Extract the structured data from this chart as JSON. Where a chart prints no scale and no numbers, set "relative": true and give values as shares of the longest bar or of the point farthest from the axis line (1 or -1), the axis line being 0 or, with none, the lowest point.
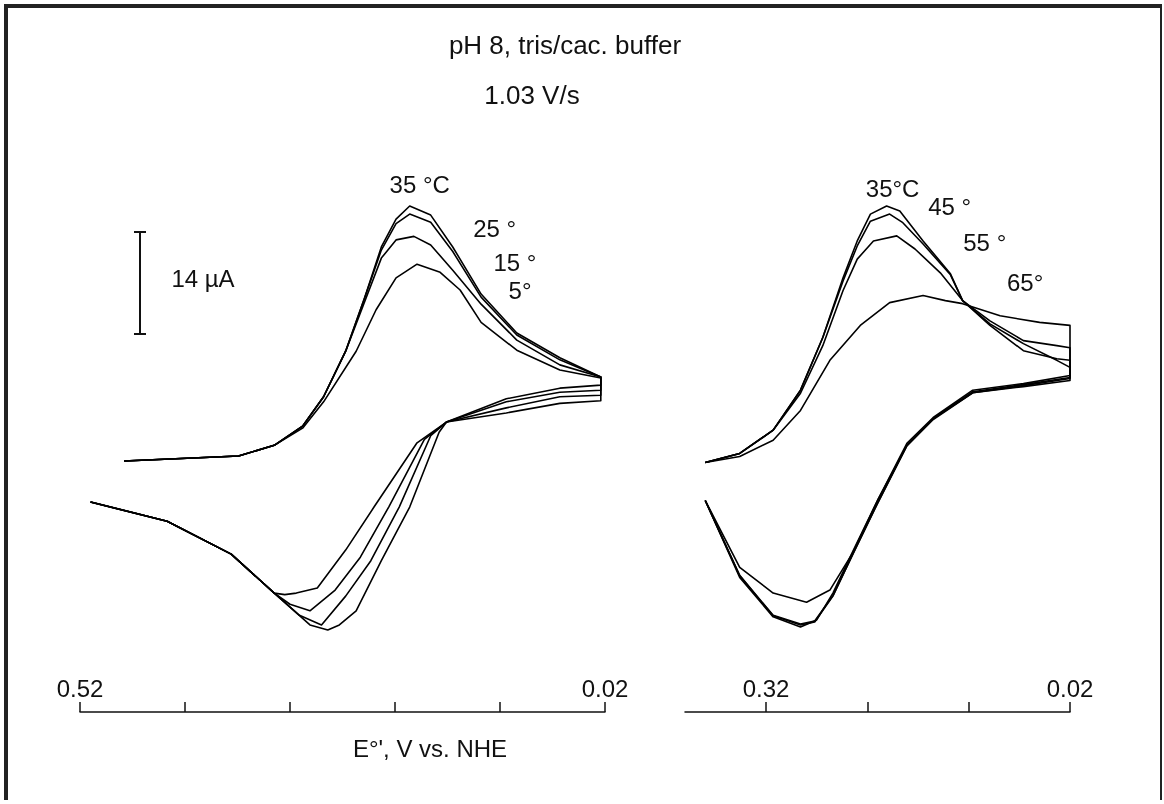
{
  "chart_data": [
    {
      "type": "line",
      "title": "pH 8, tris/cac. buffer",
      "subtitle": "1.03 V/s",
      "xlabel": "E°', V vs. NHE",
      "annotations": [
        "14 µA"
      ],
      "relative": true,
      "xlim": [
        0.52,
        0.02
      ],
      "xticks": [
        0.52,
        {
          "value": 0.42,
          "label": null
        },
        {
          "value": 0.32,
          "label": null
        },
        {
          "value": 0.22,
          "label": null
        },
        {
          "value": 0.12,
          "label": null
        },
        0.02
      ],
      "tick_labels": "x",
      "marker": "none",
      "legend": false,
      "grid": false,
      "series": [
        {
          "name": "35 °C",
          "color": "#000000",
          "x": [
            0.478,
            0.369,
            0.335,
            0.308,
            0.288,
            0.267,
            0.25,
            0.233,
            0.219,
            0.206,
            0.186,
            0.165,
            0.138,
            0.104,
            0.063,
            0.024,
            0.024,
            0.063,
            0.114,
            0.171,
            0.178,
            0.206,
            0.233,
            0.257,
            0.273,
            0.284,
            0.301,
            0.335,
            0.376,
            0.437,
            0.51
          ],
          "values": [
            0.496,
            0.506,
            0.527,
            0.565,
            0.623,
            0.713,
            0.812,
            0.919,
            0.974,
            1.0,
            0.982,
            0.919,
            0.826,
            0.749,
            0.7,
            0.662,
            0.646,
            0.64,
            0.619,
            0.573,
            0.553,
            0.405,
            0.299,
            0.2,
            0.172,
            0.162,
            0.172,
            0.235,
            0.312,
            0.377,
            0.415
          ]
        },
        {
          "name": "25 °",
          "color": "#000000",
          "x": [
            0.478,
            0.369,
            0.335,
            0.308,
            0.288,
            0.267,
            0.25,
            0.233,
            0.219,
            0.206,
            0.186,
            0.165,
            0.138,
            0.104,
            0.063,
            0.024,
            0.024,
            0.063,
            0.114,
            0.171,
            0.186,
            0.216,
            0.243,
            0.267,
            0.29,
            0.311,
            0.335,
            0.376,
            0.437,
            0.51
          ],
          "values": [
            0.496,
            0.506,
            0.527,
            0.565,
            0.623,
            0.713,
            0.812,
            0.913,
            0.965,
            0.984,
            0.968,
            0.91,
            0.82,
            0.745,
            0.696,
            0.662,
            0.636,
            0.632,
            0.613,
            0.573,
            0.546,
            0.405,
            0.299,
            0.229,
            0.172,
            0.191,
            0.235,
            0.312,
            0.377,
            0.415
          ]
        },
        {
          "name": "15 °",
          "color": "#000000",
          "x": [
            0.478,
            0.369,
            0.335,
            0.308,
            0.288,
            0.267,
            0.25,
            0.233,
            0.219,
            0.202,
            0.186,
            0.165,
            0.138,
            0.104,
            0.063,
            0.024,
            0.024,
            0.063,
            0.114,
            0.171,
            0.192,
            0.226,
            0.253,
            0.277,
            0.301,
            0.32,
            0.335,
            0.376,
            0.437,
            0.51
          ],
          "values": [
            0.496,
            0.506,
            0.527,
            0.565,
            0.623,
            0.713,
            0.805,
            0.897,
            0.933,
            0.94,
            0.923,
            0.873,
            0.806,
            0.735,
            0.686,
            0.662,
            0.626,
            0.623,
            0.601,
            0.573,
            0.539,
            0.405,
            0.306,
            0.241,
            0.2,
            0.213,
            0.235,
            0.312,
            0.377,
            0.415
          ]
        },
        {
          "name": "5°",
          "color": "#000000",
          "x": [
            0.478,
            0.369,
            0.335,
            0.308,
            0.288,
            0.257,
            0.238,
            0.219,
            0.199,
            0.177,
            0.158,
            0.138,
            0.104,
            0.063,
            0.024,
            0.024,
            0.063,
            0.114,
            0.171,
            0.199,
            0.24,
            0.267,
            0.294,
            0.314,
            0.325,
            0.335,
            0.376,
            0.437,
            0.51
          ],
          "values": [
            0.496,
            0.506,
            0.527,
            0.561,
            0.613,
            0.713,
            0.795,
            0.858,
            0.885,
            0.869,
            0.834,
            0.77,
            0.715,
            0.676,
            0.66,
            0.615,
            0.61,
            0.591,
            0.573,
            0.532,
            0.405,
            0.32,
            0.245,
            0.235,
            0.232,
            0.235,
            0.312,
            0.377,
            0.415
          ]
        }
      ]
    },
    {
      "type": "line",
      "relative": true,
      "xlim": [
        0.4,
        0.02
      ],
      "xticks": [
        0.32,
        {
          "value": 0.22,
          "label": null
        },
        {
          "value": 0.12,
          "label": null
        },
        0.02
      ],
      "tick_labels": "x",
      "marker": "none",
      "legend": false,
      "grid": false,
      "series": [
        {
          "name": "35°C",
          "color": "#000000",
          "x": [
            0.38,
            0.346,
            0.313,
            0.286,
            0.264,
            0.244,
            0.23,
            0.217,
            0.201,
            0.188,
            0.165,
            0.138,
            0.126,
            0.099,
            0.066,
            0.033,
            0.02,
            0.02,
            0.066,
            0.116,
            0.155,
            0.181,
            0.21,
            0.234,
            0.254,
            0.27,
            0.286,
            0.313,
            0.346,
            0.38
          ],
          "values": [
            0.493,
            0.511,
            0.557,
            0.636,
            0.74,
            0.858,
            0.931,
            0.984,
            1.0,
            0.99,
            0.931,
            0.866,
            0.813,
            0.767,
            0.728,
            0.695,
            0.681,
            0.665,
            0.649,
            0.636,
            0.582,
            0.531,
            0.418,
            0.319,
            0.235,
            0.182,
            0.168,
            0.188,
            0.266,
            0.418
          ]
        },
        {
          "name": "45 °",
          "color": "#000000",
          "x": [
            0.38,
            0.346,
            0.313,
            0.286,
            0.264,
            0.244,
            0.23,
            0.217,
            0.198,
            0.185,
            0.165,
            0.138,
            0.126,
            0.099,
            0.066,
            0.033,
            0.02,
            0.02,
            0.066,
            0.116,
            0.155,
            0.181,
            0.21,
            0.234,
            0.254,
            0.272,
            0.286,
            0.313,
            0.346,
            0.38
          ],
          "values": [
            0.493,
            0.511,
            0.557,
            0.636,
            0.74,
            0.852,
            0.921,
            0.97,
            0.984,
            0.967,
            0.925,
            0.864,
            0.813,
            0.764,
            0.714,
            0.698,
            0.695,
            0.661,
            0.647,
            0.633,
            0.58,
            0.527,
            0.413,
            0.314,
            0.229,
            0.178,
            0.172,
            0.19,
            0.269,
            0.418
          ]
        },
        {
          "name": "55 °",
          "color": "#000000",
          "x": [
            0.38,
            0.346,
            0.313,
            0.286,
            0.264,
            0.244,
            0.23,
            0.214,
            0.191,
            0.173,
            0.148,
            0.126,
            0.099,
            0.066,
            0.033,
            0.02,
            0.02,
            0.066,
            0.116,
            0.155,
            0.181,
            0.21,
            0.234,
            0.254,
            0.272,
            0.286,
            0.313,
            0.346,
            0.38
          ],
          "values": [
            0.493,
            0.511,
            0.557,
            0.63,
            0.724,
            0.833,
            0.895,
            0.931,
            0.941,
            0.915,
            0.868,
            0.813,
            0.773,
            0.734,
            0.724,
            0.72,
            0.659,
            0.645,
            0.631,
            0.578,
            0.526,
            0.412,
            0.313,
            0.23,
            0.18,
            0.174,
            0.191,
            0.27,
            0.418
          ]
        },
        {
          "name": "65°",
          "color": "#000000",
          "x": [
            0.38,
            0.346,
            0.313,
            0.286,
            0.257,
            0.227,
            0.198,
            0.165,
            0.143,
            0.126,
            0.089,
            0.05,
            0.02,
            0.02,
            0.066,
            0.116,
            0.155,
            0.181,
            0.21,
            0.234,
            0.257,
            0.28,
            0.313,
            0.346,
            0.38
          ],
          "values": [
            0.493,
            0.505,
            0.537,
            0.596,
            0.695,
            0.764,
            0.809,
            0.823,
            0.813,
            0.807,
            0.783,
            0.77,
            0.764,
            0.655,
            0.643,
            0.631,
            0.58,
            0.527,
            0.418,
            0.316,
            0.241,
            0.217,
            0.235,
            0.286,
            0.418
          ]
        }
      ]
    }
  ]
}
